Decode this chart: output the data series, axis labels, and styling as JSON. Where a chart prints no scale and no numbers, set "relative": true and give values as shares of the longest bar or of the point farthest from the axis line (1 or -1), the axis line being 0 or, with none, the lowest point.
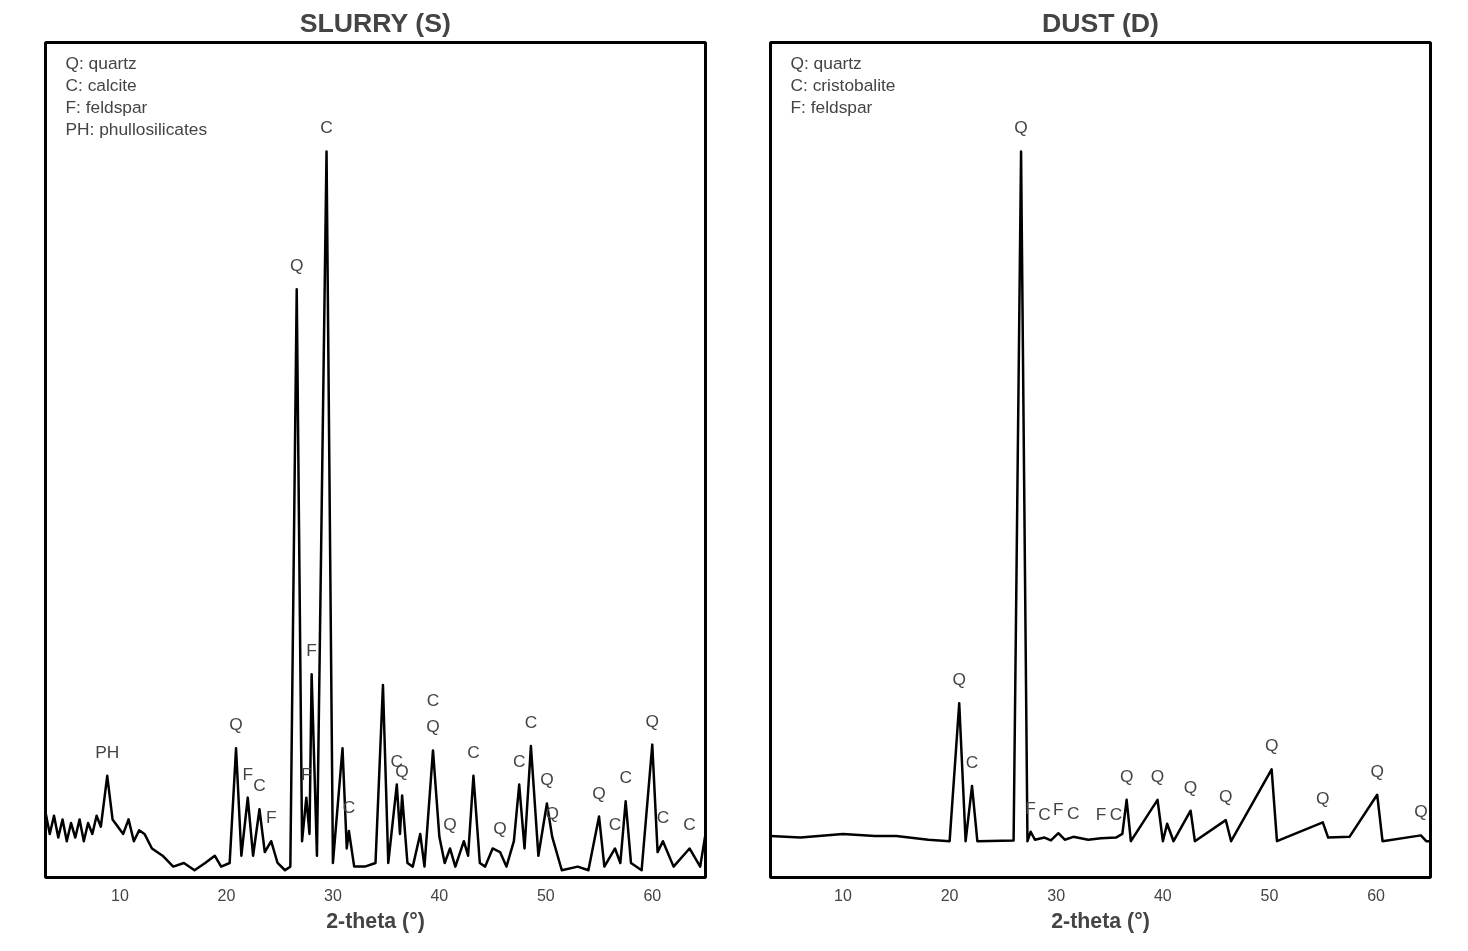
{
  "chart_data": [
    {
      "type": "line",
      "title": "SLURRY (S)",
      "xlabel": "2-theta (°)",
      "relative": true,
      "xlim": [
        3,
        65
      ],
      "xticks": [
        10,
        20,
        30,
        40,
        50,
        60
      ],
      "tick_labels": "x",
      "grid": false,
      "series": [
        {
          "color": "#000000",
          "x": [
            3,
            3.4,
            3.8,
            4.2,
            4.6,
            5,
            5.4,
            5.8,
            6.2,
            6.6,
            7,
            7.4,
            7.8,
            8.2,
            8.8,
            9.3,
            9.8,
            10.3,
            10.8,
            11.3,
            11.8,
            12.3,
            13,
            14,
            15,
            16,
            17,
            18,
            18.9,
            19.5,
            20.3,
            20.9,
            21.4,
            22,
            22.5,
            23.1,
            23.6,
            24.2,
            24.8,
            25.5,
            26,
            26.6,
            27.1,
            27.5,
            27.8,
            28.0,
            28.5,
            29.4,
            30,
            30.9,
            31.3,
            31.5,
            32,
            33,
            34,
            34.7,
            35.2,
            36.0,
            36.3,
            36.5,
            37,
            37.5,
            38.2,
            38.6,
            39.4,
            40,
            40.5,
            41,
            41.5,
            42.3,
            42.7,
            43.2,
            43.8,
            44.3,
            45,
            45.7,
            46.3,
            47,
            47.5,
            48,
            48.6,
            49.3,
            50.1,
            50.6,
            51.5,
            53,
            54,
            55,
            55.5,
            56.5,
            57,
            57.5,
            58,
            59,
            60.0,
            60.5,
            61,
            62,
            63.5,
            64.5,
            65
          ],
          "values": [
            0.09,
            0.06,
            0.085,
            0.055,
            0.08,
            0.05,
            0.075,
            0.055,
            0.08,
            0.05,
            0.075,
            0.06,
            0.085,
            0.07,
            0.14,
            0.08,
            0.07,
            0.06,
            0.08,
            0.05,
            0.065,
            0.06,
            0.04,
            0.03,
            0.015,
            0.02,
            0.01,
            0.02,
            0.03,
            0.015,
            0.02,
            0.178,
            0.03,
            0.11,
            0.03,
            0.094,
            0.035,
            0.05,
            0.02,
            0.01,
            0.015,
            0.81,
            0.05,
            0.11,
            0.06,
            0.28,
            0.03,
            1.0,
            0.02,
            0.178,
            0.04,
            0.064,
            0.015,
            0.015,
            0.02,
            0.265,
            0.02,
            0.128,
            0.06,
            0.113,
            0.02,
            0.015,
            0.06,
            0.015,
            0.175,
            0.056,
            0.02,
            0.04,
            0.015,
            0.05,
            0.03,
            0.14,
            0.02,
            0.015,
            0.04,
            0.035,
            0.015,
            0.05,
            0.128,
            0.04,
            0.181,
            0.03,
            0.102,
            0.056,
            0.01,
            0.015,
            0.01,
            0.084,
            0.015,
            0.04,
            0.02,
            0.105,
            0.02,
            0.01,
            0.183,
            0.035,
            0.05,
            0.015,
            0.04,
            0.015,
            0.06
          ]
        }
      ],
      "annotations": [
        "Q: quartz",
        "C: calcite",
        "F: feldspar",
        "PH: phullosilicates",
        {
          "text": "PH",
          "x": 8.8,
          "y": 0.14
        },
        {
          "text": "Q",
          "x": 20.9,
          "y": 0.178
        },
        {
          "text": "F",
          "x": 22.0,
          "y": 0.11
        },
        {
          "text": "C",
          "x": 23.1,
          "y": 0.094
        },
        {
          "text": "F",
          "x": 24.2,
          "y": 0.05
        },
        {
          "text": "Q",
          "x": 26.6,
          "y": 0.81
        },
        {
          "text": "F",
          "x": 27.5,
          "y": 0.11
        },
        {
          "text": "F",
          "x": 28.0,
          "y": 0.28
        },
        {
          "text": "C",
          "x": 29.4,
          "y": 1.0
        },
        {
          "text": "C",
          "x": 31.5,
          "y": 0.064
        },
        {
          "text": "C",
          "x": 36.0,
          "y": 0.128
        },
        {
          "text": "Q",
          "x": 36.5,
          "y": 0.113
        },
        {
          "text": "Q",
          "x": 39.4,
          "y": 0.175
        },
        {
          "text": "C",
          "x": 39.4,
          "y": 0.175
        },
        {
          "text": "Q",
          "x": 41,
          "y": 0.04
        },
        {
          "text": "C",
          "x": 43.2,
          "y": 0.14
        },
        {
          "text": "Q",
          "x": 45.7,
          "y": 0.035
        },
        {
          "text": "C",
          "x": 47.5,
          "y": 0.128
        },
        {
          "text": "C",
          "x": 48.6,
          "y": 0.181
        },
        {
          "text": "Q",
          "x": 50.1,
          "y": 0.102
        },
        {
          "text": "Q",
          "x": 50.6,
          "y": 0.056
        },
        {
          "text": "Q",
          "x": 55,
          "y": 0.084
        },
        {
          "text": "C",
          "x": 56.5,
          "y": 0.04
        },
        {
          "text": "C",
          "x": 57.5,
          "y": 0.105
        },
        {
          "text": "Q",
          "x": 60.0,
          "y": 0.183
        },
        {
          "text": "C",
          "x": 61,
          "y": 0.05
        },
        {
          "text": "C",
          "x": 63.5,
          "y": 0.04
        }
      ]
    },
    {
      "type": "line",
      "title": "DUST (D)",
      "xlabel": "2-theta (°)",
      "relative": true,
      "xlim": [
        3.2,
        65.1
      ],
      "xticks": [
        10,
        20,
        30,
        40,
        50,
        60
      ],
      "tick_labels": "x",
      "grid": false,
      "series": [
        {
          "color": "#000000",
          "x": [
            3.2,
            6,
            10,
            13,
            15,
            18,
            20,
            20.9,
            21.5,
            22.1,
            22.6,
            26,
            26.7,
            27.3,
            27.6,
            28,
            28.9,
            29.5,
            30.2,
            30.8,
            31.6,
            33,
            34.2,
            35.6,
            36.2,
            36.6,
            37,
            39.5,
            40,
            40.4,
            41,
            42.6,
            43,
            45.9,
            46.4,
            50.2,
            50.7,
            55,
            55.5,
            57.5,
            60.1,
            60.6,
            64.2,
            64.7,
            65.1
          ],
          "values": [
            0.057,
            0.055,
            0.06,
            0.057,
            0.057,
            0.052,
            0.05,
            0.24,
            0.05,
            0.126,
            0.05,
            0.051,
            1.0,
            0.05,
            0.063,
            0.052,
            0.055,
            0.051,
            0.061,
            0.052,
            0.056,
            0.052,
            0.054,
            0.055,
            0.06,
            0.107,
            0.05,
            0.107,
            0.05,
            0.074,
            0.05,
            0.092,
            0.05,
            0.079,
            0.05,
            0.149,
            0.05,
            0.076,
            0.055,
            0.056,
            0.114,
            0.05,
            0.058,
            0.05,
            0.05
          ]
        }
      ],
      "annotations": [
        "Q: quartz",
        "C: cristobalite",
        "F: feldspar",
        {
          "text": "Q",
          "x": 20.9,
          "y": 0.24
        },
        {
          "text": "C",
          "x": 22.1,
          "y": 0.126
        },
        {
          "text": "Q",
          "x": 26.7,
          "y": 1.0
        },
        {
          "text": "F",
          "x": 27.6,
          "y": 0.063
        },
        {
          "text": "C",
          "x": 28.9,
          "y": 0.055
        },
        {
          "text": "F",
          "x": 30.2,
          "y": 0.061
        },
        {
          "text": "C",
          "x": 31.6,
          "y": 0.056
        },
        {
          "text": "F",
          "x": 34.2,
          "y": 0.054
        },
        {
          "text": "C",
          "x": 35.6,
          "y": 0.055
        },
        {
          "text": "Q",
          "x": 36.6,
          "y": 0.107
        },
        {
          "text": "Q",
          "x": 39.5,
          "y": 0.107
        },
        {
          "text": "Q",
          "x": 42.6,
          "y": 0.092
        },
        {
          "text": "Q",
          "x": 45.9,
          "y": 0.079
        },
        {
          "text": "Q",
          "x": 50.2,
          "y": 0.149
        },
        {
          "text": "Q",
          "x": 55,
          "y": 0.076
        },
        {
          "text": "Q",
          "x": 60.1,
          "y": 0.114
        },
        {
          "text": "Q",
          "x": 64.2,
          "y": 0.058
        }
      ]
    }
  ]
}
